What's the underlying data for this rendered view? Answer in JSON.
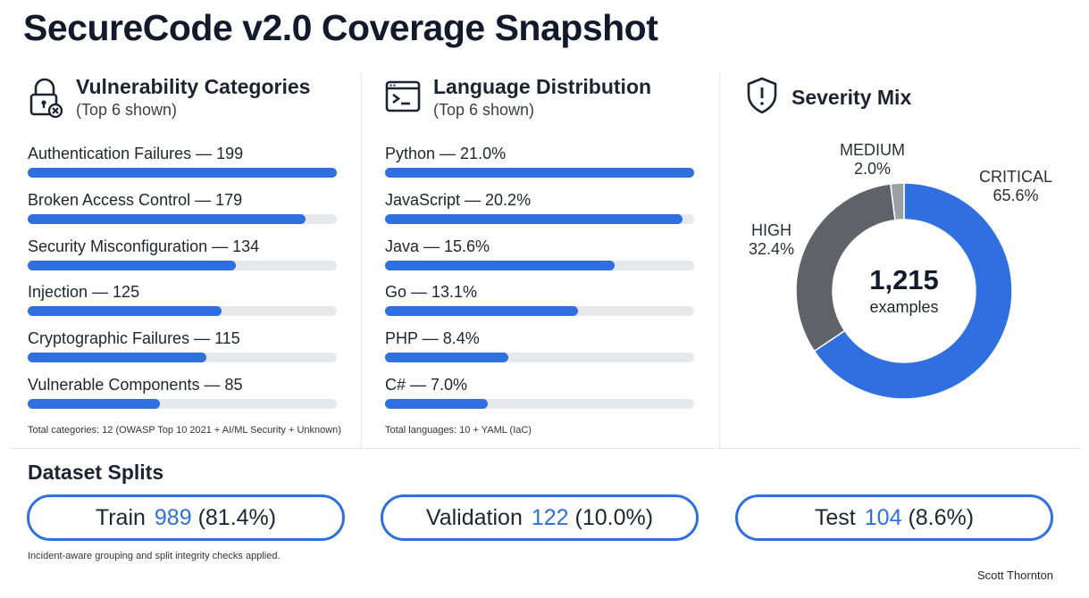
{
  "title": "SecureCode v2.0 Coverage Snapshot",
  "colors": {
    "accent": "#2f6fe0",
    "track": "#e6e8ec",
    "high": "#5f6368",
    "medium": "#9aa0a6"
  },
  "vuln": {
    "title": "Vulnerability Categories",
    "subtitle": "(Top 6 shown)",
    "icon": "lock-x-icon",
    "footnote": "Total categories: 12 (OWASP Top 10 2021 + AI/ML Security + Unknown)",
    "items": [
      {
        "label": "Authentication Failures — 199",
        "value": 199
      },
      {
        "label": "Broken Access Control — 179",
        "value": 179
      },
      {
        "label": "Security Misconfiguration — 134",
        "value": 134
      },
      {
        "label": "Injection — 125",
        "value": 125
      },
      {
        "label": "Cryptographic Failures — 115",
        "value": 115
      },
      {
        "label": "Vulnerable Components — 85",
        "value": 85
      }
    ]
  },
  "lang": {
    "title": "Language Distribution",
    "subtitle": "(Top 6 shown)",
    "icon": "terminal-icon",
    "footnote": "Total languages: 10 + YAML (IaC)",
    "items": [
      {
        "label": "Python — 21.0%",
        "value": 21.0
      },
      {
        "label": "JavaScript — 20.2%",
        "value": 20.2
      },
      {
        "label": "Java — 15.6%",
        "value": 15.6
      },
      {
        "label": "Go — 13.1%",
        "value": 13.1
      },
      {
        "label": "PHP — 8.4%",
        "value": 8.4
      },
      {
        "label": "C# — 7.0%",
        "value": 7.0
      }
    ]
  },
  "severity": {
    "title": "Severity Mix",
    "icon": "shield-alert-icon",
    "center_value": "1,215",
    "center_label": "examples",
    "slices": [
      {
        "name": "CRITICAL",
        "pct_label": "65.6%"
      },
      {
        "name": "HIGH",
        "pct_label": "32.4%"
      },
      {
        "name": "MEDIUM",
        "pct_label": "2.0%"
      }
    ]
  },
  "splits": {
    "title": "Dataset Splits",
    "note": "Incident-aware grouping and split integrity checks applied.",
    "items": [
      {
        "name": "Train",
        "count": "989",
        "pct": "(81.4%)"
      },
      {
        "name": "Validation",
        "count": "122",
        "pct": "(10.0%)"
      },
      {
        "name": "Test",
        "count": "104",
        "pct": "(8.6%)"
      }
    ]
  },
  "author": "Scott Thornton",
  "chart_data": [
    {
      "type": "bar",
      "title": "Vulnerability Categories",
      "subtitle": "(Top 6 shown)",
      "categories": [
        "Authentication Failures",
        "Broken Access Control",
        "Security Misconfiguration",
        "Injection",
        "Cryptographic Failures",
        "Vulnerable Components"
      ],
      "values": [
        199,
        179,
        134,
        125,
        115,
        85
      ],
      "orientation": "horizontal"
    },
    {
      "type": "bar",
      "title": "Language Distribution",
      "subtitle": "(Top 6 shown)",
      "categories": [
        "Python",
        "JavaScript",
        "Java",
        "Go",
        "PHP",
        "C#"
      ],
      "values": [
        21.0,
        20.2,
        15.6,
        13.1,
        8.4,
        7.0
      ],
      "unit": "%",
      "orientation": "horizontal"
    },
    {
      "type": "pie",
      "title": "Severity Mix",
      "categories": [
        "CRITICAL",
        "HIGH",
        "MEDIUM"
      ],
      "values": [
        65.6,
        32.4,
        2.0
      ],
      "unit": "%",
      "center_text": "1,215 examples"
    }
  ]
}
